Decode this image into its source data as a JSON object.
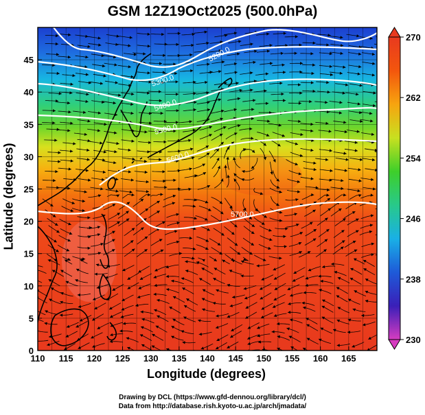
{
  "title": "GSM 12Z19Oct2025 (500.0hPa)",
  "xlabel": "Longitude (degrees)",
  "ylabel": "Latitude  (degrees)",
  "credits": [
    "Drawing by DCL (https://www.gfd-dennou.org/library/dcl/)",
    "Data from http://database.rish.kyoto-u.ac.jp/arch/jmadata/"
  ],
  "map": {
    "lon_range": [
      110,
      170
    ],
    "lat_range": [
      0,
      50
    ],
    "lon_ticks": [
      110,
      115,
      120,
      125,
      130,
      135,
      140,
      145,
      150,
      155,
      160,
      165
    ],
    "lat_ticks": [
      0,
      5,
      10,
      15,
      20,
      25,
      30,
      35,
      40,
      45
    ],
    "grid_step_lon": 2.5,
    "grid_step_lat": 5,
    "fill_variable": "temperature (K)",
    "colorbar": {
      "min": 230,
      "max": 270,
      "labels": [
        270,
        262,
        254,
        246,
        238,
        230
      ],
      "stops": [
        "#d63cc0",
        "#3a1fb8",
        "#1e5ad8",
        "#19b0e6",
        "#28c98a",
        "#3ecf2a",
        "#c8e020",
        "#f7a40f",
        "#f3560d",
        "#e83a1f"
      ]
    },
    "contours": [
      {
        "label": "5700.0"
      },
      {
        "label": "5600.0"
      },
      {
        "label": "5500.0"
      },
      {
        "label": "5400.0"
      },
      {
        "label": "5300.0"
      },
      {
        "label": "5200.0"
      }
    ],
    "coastline_color": "#000000",
    "vector_color": "#000000"
  }
}
